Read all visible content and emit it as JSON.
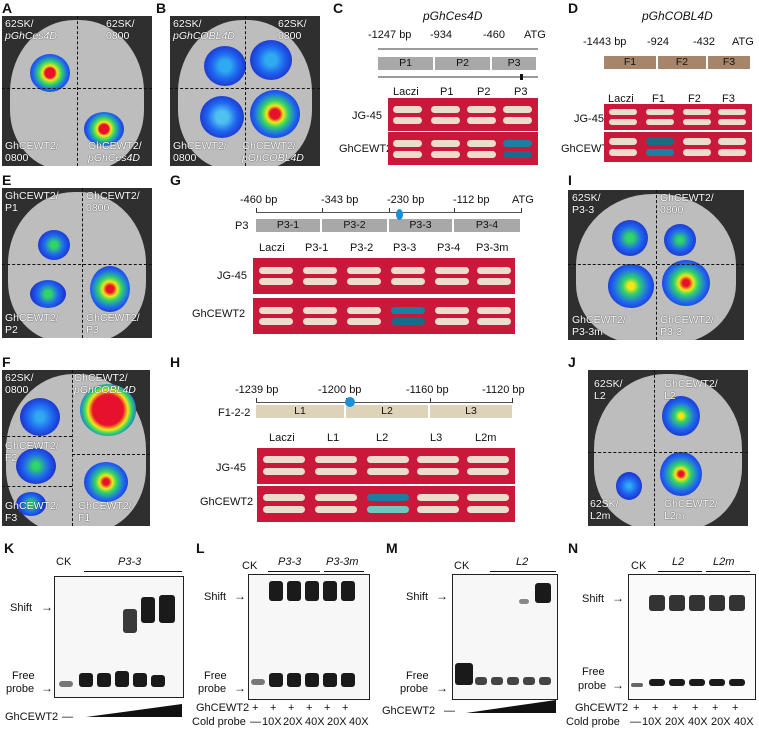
{
  "figure": {
    "panels": {
      "A": {
        "letter": "A",
        "tl": "62SK/",
        "tl2": "pGhCes4D",
        "tr": "62SK/",
        "tr2": "0800",
        "bl": "GhCEWT2/",
        "bl2": "0800",
        "br": "GhCEWT2/",
        "br2": "pGhCes4D"
      },
      "B": {
        "letter": "B",
        "tl": "62SK/",
        "tl2": "pGhCOBL4D",
        "tr": "62SK/",
        "tr2": "0800",
        "bl": "GhCEWT2/",
        "bl2": "0800",
        "br": "GhCEWT2/",
        "br2": "pGhCOBL4D"
      },
      "C": {
        "letter": "C",
        "title": "pGhCes4D",
        "positions": [
          "-1247 bp",
          "-934",
          "-460",
          "ATG"
        ],
        "segments": [
          "P1",
          "P2",
          "P3"
        ],
        "columns": [
          "Laczi",
          "P1",
          "P2",
          "P3"
        ],
        "rows": [
          "JG-45",
          "GhCEWT2"
        ]
      },
      "D": {
        "letter": "D",
        "title": "pGhCOBL4D",
        "positions": [
          "-1443 bp",
          "-924",
          "-432",
          "ATG"
        ],
        "segments": [
          "F1",
          "F2",
          "F3"
        ],
        "columns": [
          "Laczi",
          "F1",
          "F2",
          "F3"
        ],
        "rows": [
          "JG-45",
          "GhCEWT2"
        ]
      },
      "E": {
        "letter": "E",
        "tl": "GhCEWT2/",
        "tl2": "P1",
        "tr": "GhCEWT2/",
        "tr2": "0800",
        "bl": "GhCEWT2/",
        "bl2": "P2",
        "br": "GhCEWT2/",
        "br2": "P3"
      },
      "F": {
        "letter": "F",
        "tl": "62SK/",
        "tl2": "0800",
        "tr": "GhCEWT2/",
        "tr2": "pGhCOBL4D",
        "ml": "GhCEWT2/",
        "ml2": "F2",
        "bl": "GhCEWT2/",
        "bl2": "F3",
        "br": "GhCEWT2/",
        "br2": "F1"
      },
      "G": {
        "letter": "G",
        "prefix": "P3",
        "positions": [
          "-460 bp",
          "-343 bp",
          "-230 bp",
          "-112 bp",
          "ATG"
        ],
        "segments": [
          "P3-1",
          "P3-2",
          "P3-3",
          "P3-4"
        ],
        "columns": [
          "Laczi",
          "P3-1",
          "P3-2",
          "P3-3",
          "P3-4",
          "P3-3m"
        ],
        "rows": [
          "JG-45",
          "GhCEWT2"
        ]
      },
      "H": {
        "letter": "H",
        "prefix": "F1-2-2",
        "positions": [
          "-1239 bp",
          "-1200 bp",
          "-1160 bp",
          "-1120 bp"
        ],
        "segments": [
          "L1",
          "L2",
          "L3"
        ],
        "columns": [
          "Laczi",
          "L1",
          "L2",
          "L3",
          "L2m"
        ],
        "rows": [
          "JG-45",
          "GhCEWT2"
        ]
      },
      "I": {
        "letter": "I",
        "tl": "62SK/",
        "tl2": "P3-3",
        "tr": "GhCEWT2/",
        "tr2": "0800",
        "bl": "GhCEWT2/",
        "bl2": "P3-3m",
        "br": "GhCEWT2/",
        "br2": "P3-3"
      },
      "J": {
        "letter": "J",
        "tl": "62SK/",
        "tl2": "L2",
        "tr": "GhCEWT2/",
        "tr2": "L2",
        "bl": "62SK/",
        "bl2": "L2m",
        "br": "GhCEWT2/",
        "br2": "L2m"
      },
      "K": {
        "letter": "K",
        "ck": "CK",
        "probe": "P3-3",
        "shift": "Shift",
        "free1": "Free",
        "free2": "probe",
        "protein": "GhCEWT2",
        "minus": "—"
      },
      "L": {
        "letter": "L",
        "ck": "CK",
        "probe": "P3-3",
        "probe2": "P3-3m",
        "shift": "Shift",
        "free1": "Free",
        "free2": "probe",
        "protein": "GhCEWT2",
        "cold": "Cold probe",
        "plus": "+",
        "minus": "—",
        "conc": [
          "10X",
          "20X",
          "40X",
          "20X",
          "40X"
        ]
      },
      "M": {
        "letter": "M",
        "ck": "CK",
        "probe": "L2",
        "shift": "Shift",
        "free1": "Free",
        "free2": "probe",
        "protein": "GhCEWT2",
        "minus": "—"
      },
      "N": {
        "letter": "N",
        "ck": "CK",
        "probe": "L2",
        "probe2": "L2m",
        "shift": "Shift",
        "free1": "Free",
        "free2": "probe",
        "protein": "GhCEWT2",
        "cold": "Cold probe",
        "plus": "+",
        "minus": "—",
        "conc": [
          "10X",
          "20X",
          "40X",
          "20X",
          "40X"
        ]
      }
    },
    "colors": {
      "yeast_bg": "#c9183a",
      "blue_colony": "#1a7fa0",
      "leaf_bg": "#2f2f2f"
    }
  }
}
